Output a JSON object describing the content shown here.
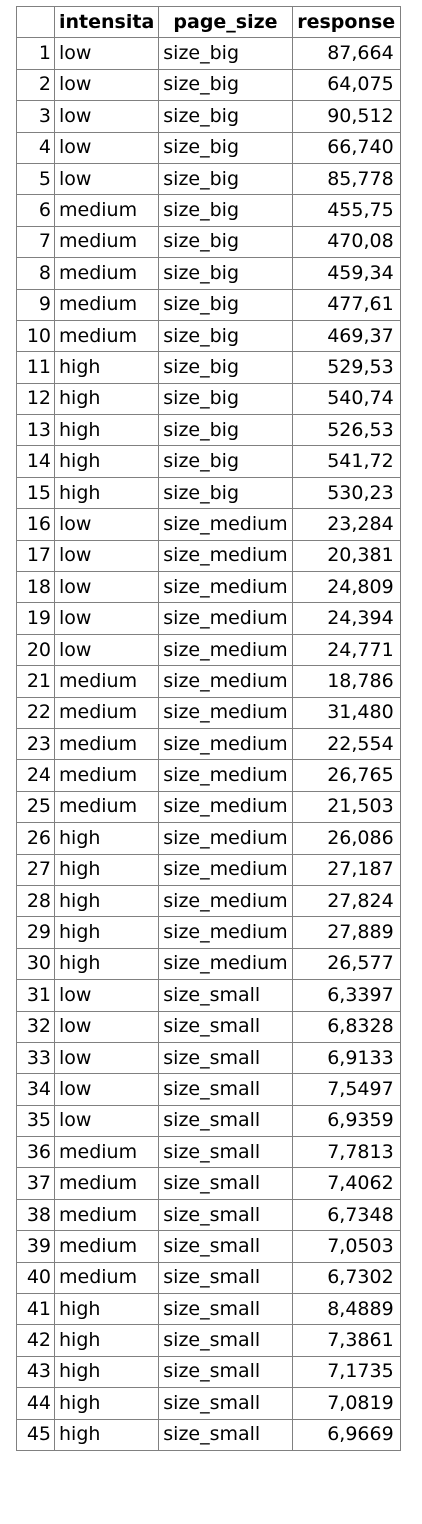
{
  "table": {
    "headers": [
      "",
      "intensita",
      "page_size",
      "response"
    ],
    "rows": [
      [
        "1",
        "low",
        "size_big",
        "87,664"
      ],
      [
        "2",
        "low",
        "size_big",
        "64,075"
      ],
      [
        "3",
        "low",
        "size_big",
        "90,512"
      ],
      [
        "4",
        "low",
        "size_big",
        "66,740"
      ],
      [
        "5",
        "low",
        "size_big",
        "85,778"
      ],
      [
        "6",
        "medium",
        "size_big",
        "455,75"
      ],
      [
        "7",
        "medium",
        "size_big",
        "470,08"
      ],
      [
        "8",
        "medium",
        "size_big",
        "459,34"
      ],
      [
        "9",
        "medium",
        "size_big",
        "477,61"
      ],
      [
        "10",
        "medium",
        "size_big",
        "469,37"
      ],
      [
        "11",
        "high",
        "size_big",
        "529,53"
      ],
      [
        "12",
        "high",
        "size_big",
        "540,74"
      ],
      [
        "13",
        "high",
        "size_big",
        "526,53"
      ],
      [
        "14",
        "high",
        "size_big",
        "541,72"
      ],
      [
        "15",
        "high",
        "size_big",
        "530,23"
      ],
      [
        "16",
        "low",
        "size_medium",
        "23,284"
      ],
      [
        "17",
        "low",
        "size_medium",
        "20,381"
      ],
      [
        "18",
        "low",
        "size_medium",
        "24,809"
      ],
      [
        "19",
        "low",
        "size_medium",
        "24,394"
      ],
      [
        "20",
        "low",
        "size_medium",
        "24,771"
      ],
      [
        "21",
        "medium",
        "size_medium",
        "18,786"
      ],
      [
        "22",
        "medium",
        "size_medium",
        "31,480"
      ],
      [
        "23",
        "medium",
        "size_medium",
        "22,554"
      ],
      [
        "24",
        "medium",
        "size_medium",
        "26,765"
      ],
      [
        "25",
        "medium",
        "size_medium",
        "21,503"
      ],
      [
        "26",
        "high",
        "size_medium",
        "26,086"
      ],
      [
        "27",
        "high",
        "size_medium",
        "27,187"
      ],
      [
        "28",
        "high",
        "size_medium",
        "27,824"
      ],
      [
        "29",
        "high",
        "size_medium",
        "27,889"
      ],
      [
        "30",
        "high",
        "size_medium",
        "26,577"
      ],
      [
        "31",
        "low",
        "size_small",
        "6,3397"
      ],
      [
        "32",
        "low",
        "size_small",
        "6,8328"
      ],
      [
        "33",
        "low",
        "size_small",
        "6,9133"
      ],
      [
        "34",
        "low",
        "size_small",
        "7,5497"
      ],
      [
        "35",
        "low",
        "size_small",
        "6,9359"
      ],
      [
        "36",
        "medium",
        "size_small",
        "7,7813"
      ],
      [
        "37",
        "medium",
        "size_small",
        "7,4062"
      ],
      [
        "38",
        "medium",
        "size_small",
        "6,7348"
      ],
      [
        "39",
        "medium",
        "size_small",
        "7,0503"
      ],
      [
        "40",
        "medium",
        "size_small",
        "6,7302"
      ],
      [
        "41",
        "high",
        "size_small",
        "8,4889"
      ],
      [
        "42",
        "high",
        "size_small",
        "7,3861"
      ],
      [
        "43",
        "high",
        "size_small",
        "7,1735"
      ],
      [
        "44",
        "high",
        "size_small",
        "7,0819"
      ],
      [
        "45",
        "high",
        "size_small",
        "6,9669"
      ]
    ]
  }
}
